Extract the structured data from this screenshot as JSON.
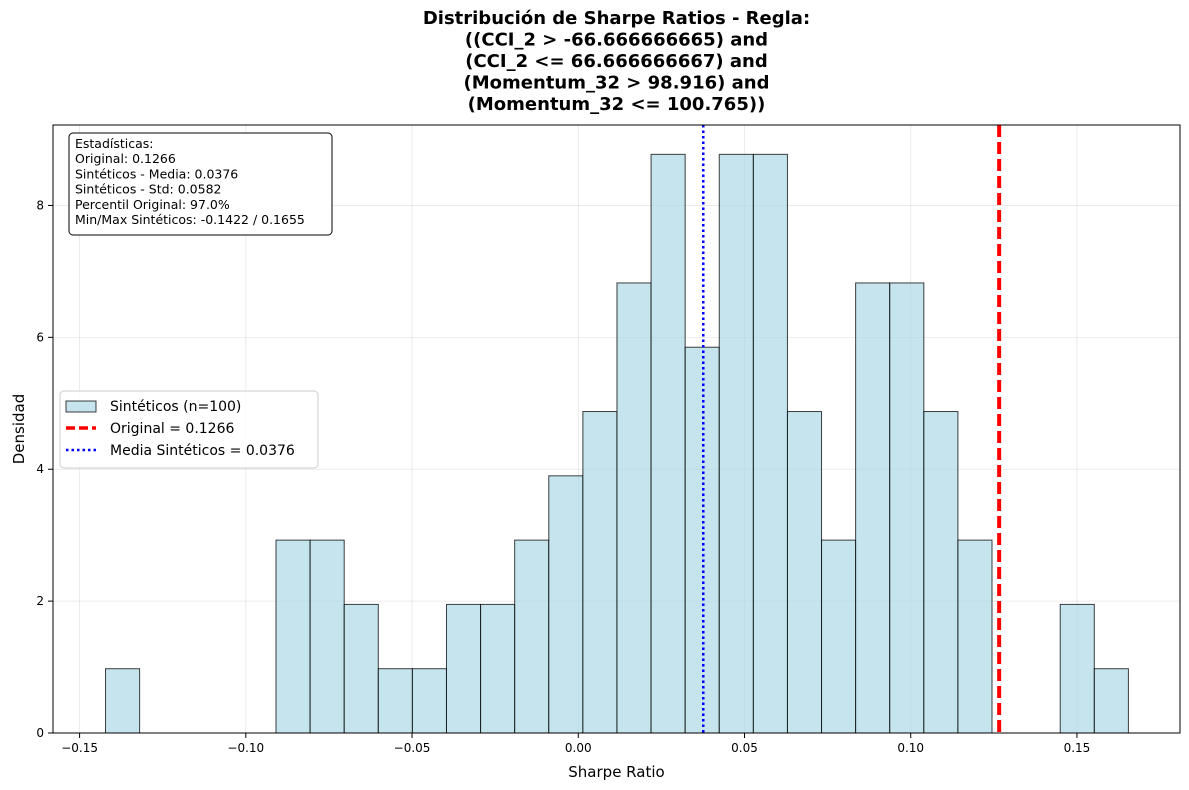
{
  "chart_data": {
    "type": "bar",
    "title_lines": [
      "Distribución de Sharpe Ratios - Regla:",
      "((CCI_2 > -66.666666665) and",
      "(CCI_2 <= 66.666666667) and",
      "(Momentum_32 > 98.916) and",
      "(Momentum_32 <= 100.765))"
    ],
    "xlabel": "Sharpe Ratio",
    "ylabel": "Densidad",
    "xlim": [
      -0.158,
      0.181
    ],
    "ylim": [
      0,
      9.22
    ],
    "x_ticks": [
      -0.15,
      -0.1,
      -0.05,
      0.0,
      0.05,
      0.1,
      0.15
    ],
    "x_tick_labels": [
      "−0.15",
      "−0.10",
      "−0.05",
      "0.00",
      "0.05",
      "0.10",
      "0.15"
    ],
    "y_ticks": [
      0,
      2,
      4,
      6,
      8
    ],
    "y_tick_labels": [
      "0",
      "2",
      "4",
      "6",
      "8"
    ],
    "grid": true,
    "bin_start": -0.1422,
    "bin_width": 0.010256,
    "densities": [
      0.975,
      0,
      0,
      0,
      0,
      2.925,
      2.925,
      1.95,
      0.975,
      0.975,
      1.95,
      1.95,
      2.925,
      3.9,
      4.875,
      6.825,
      8.775,
      5.85,
      8.775,
      8.775,
      4.875,
      2.925,
      6.825,
      6.825,
      4.875,
      2.925,
      0,
      0,
      1.95,
      0.975
    ],
    "bar_color": "#add8e6",
    "original_value": 0.1266,
    "original_color": "#ff0000",
    "mean_value": 0.0376,
    "mean_color": "#0000ff",
    "legend_position": "center-left",
    "legend": [
      {
        "label": "Sintéticos (n=100)",
        "kind": "patch"
      },
      {
        "label": "Original = 0.1266",
        "kind": "dashed"
      },
      {
        "label": "Media Sintéticos = 0.0376",
        "kind": "dotted"
      }
    ],
    "stats_box": [
      "Estadísticas:",
      "Original: 0.1266",
      "Sintéticos - Media: 0.0376",
      "Sintéticos - Std: 0.0582",
      "Percentil Original: 97.0%",
      "Min/Max Sintéticos: -0.1422 / 0.1655"
    ]
  }
}
